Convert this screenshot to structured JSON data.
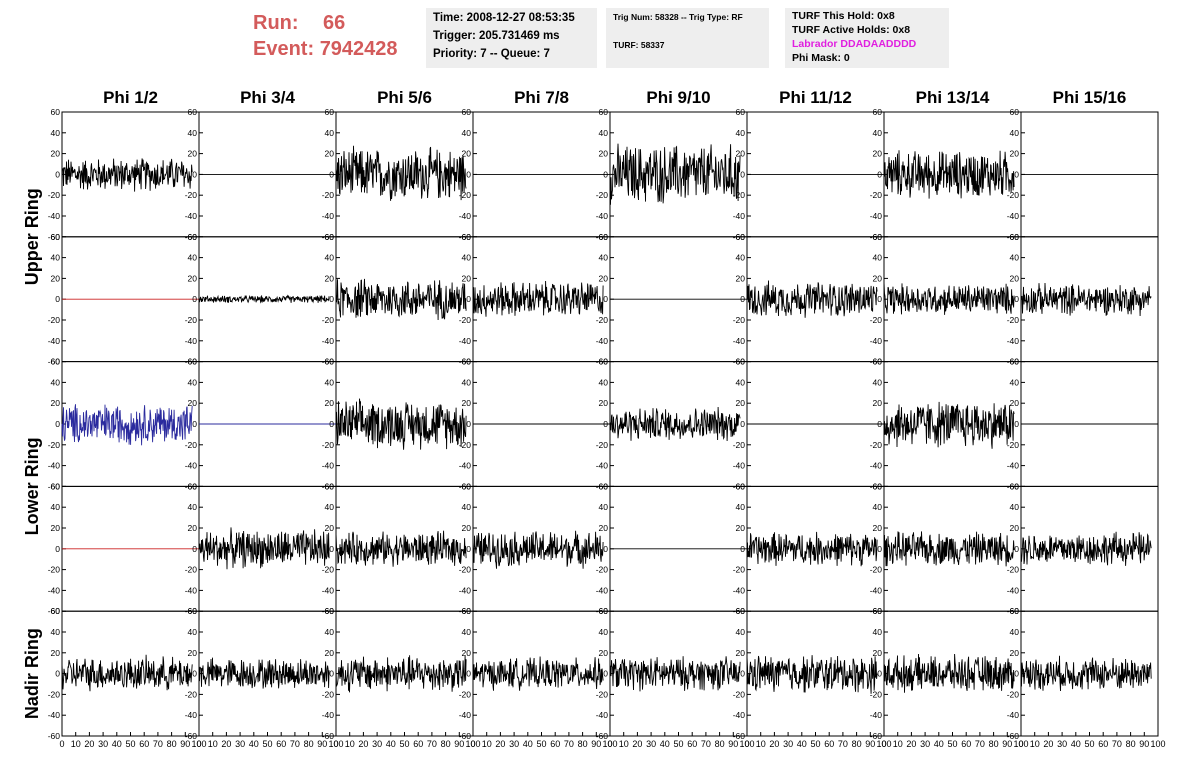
{
  "header": {
    "run_label": "Run:",
    "run_value": "66",
    "event_label": "Event:",
    "event_value": "7942428",
    "time_text": "Time: 2008-12-27 08:53:35",
    "trigger_text": "Trigger: 205.731469 ms",
    "priority_text": "Priority: 7 -- Queue: 7",
    "trig_num_text": "Trig Num: 58328 -- Trig Type: RF",
    "turf_text": "TURF: 58337",
    "turf_hold_text": "TURF This Hold: 0x8",
    "turf_active_text": "TURF Active Holds: 0x8",
    "labrador_text": "Labrador DDADAADDDD",
    "phi_mask_text": "Phi Mask: 0",
    "labrador_color": "#e020e0"
  },
  "chart_data": {
    "type": "line",
    "columns": [
      "Phi 1/2",
      "Phi 3/4",
      "Phi 5/6",
      "Phi 7/8",
      "Phi 9/10",
      "Phi 11/12",
      "Phi 13/14",
      "Phi 15/16"
    ],
    "rings": [
      {
        "name": "Upper Ring",
        "rows": [
          0,
          1
        ]
      },
      {
        "name": "Lower Ring",
        "rows": [
          2,
          3
        ]
      },
      {
        "name": "Nadir Ring",
        "rows": [
          4
        ]
      }
    ],
    "xlim": [
      0,
      100
    ],
    "ylim": [
      -60,
      60
    ],
    "yticks": [
      -60,
      -40,
      -20,
      0,
      20,
      40,
      60
    ],
    "xticks": [
      0,
      10,
      20,
      30,
      40,
      50,
      60,
      70,
      80,
      90,
      100
    ],
    "colors": {
      "black": "#000000",
      "red": "#cc2222",
      "blue": "#2b2b9e"
    },
    "panels": [
      [
        {
          "a": 14,
          "c": "black"
        },
        {
          "a": 0,
          "c": "black"
        },
        {
          "a": 22,
          "c": "black"
        },
        {
          "a": 0,
          "c": "black"
        },
        {
          "a": 25,
          "c": "black"
        },
        {
          "a": 0,
          "c": "black"
        },
        {
          "a": 20,
          "c": "black"
        },
        {
          "a": 0,
          "c": "black"
        }
      ],
      [
        {
          "a": 0,
          "c": "red"
        },
        {
          "a": 3,
          "c": "black"
        },
        {
          "a": 17,
          "c": "black"
        },
        {
          "a": 15,
          "c": "black"
        },
        {
          "a": 0,
          "c": "black"
        },
        {
          "a": 15,
          "c": "black"
        },
        {
          "a": 13,
          "c": "black"
        },
        {
          "a": 13,
          "c": "black"
        }
      ],
      [
        {
          "a": 17,
          "c": "blue"
        },
        {
          "a": 0,
          "c": "blue"
        },
        {
          "a": 20,
          "c": "black"
        },
        {
          "a": 0,
          "c": "black"
        },
        {
          "a": 14,
          "c": "black"
        },
        {
          "a": 0,
          "c": "black"
        },
        {
          "a": 20,
          "c": "black"
        },
        {
          "a": 0,
          "c": "black"
        }
      ],
      [
        {
          "a": 0,
          "c": "red"
        },
        {
          "a": 16,
          "c": "black"
        },
        {
          "a": 14,
          "c": "black"
        },
        {
          "a": 15,
          "c": "black"
        },
        {
          "a": 0,
          "c": "black"
        },
        {
          "a": 14,
          "c": "black"
        },
        {
          "a": 14,
          "c": "black"
        },
        {
          "a": 14,
          "c": "black"
        }
      ],
      [
        {
          "a": 14,
          "c": "black"
        },
        {
          "a": 13,
          "c": "black"
        },
        {
          "a": 15,
          "c": "black"
        },
        {
          "a": 13,
          "c": "black"
        },
        {
          "a": 14,
          "c": "black"
        },
        {
          "a": 16,
          "c": "black"
        },
        {
          "a": 15,
          "c": "black"
        },
        {
          "a": 14,
          "c": "black"
        }
      ]
    ]
  }
}
